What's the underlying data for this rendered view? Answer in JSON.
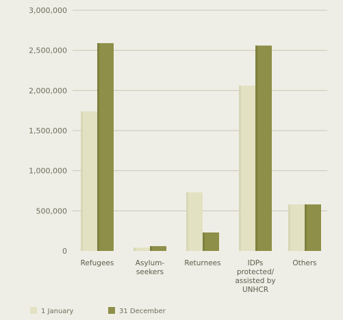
{
  "chart_data": {
    "type": "bar",
    "title": "",
    "xlabel": "",
    "ylabel": "",
    "ylim": [
      0,
      3000000
    ],
    "yticks": [
      0,
      500000,
      1000000,
      1500000,
      2000000,
      2500000,
      3000000
    ],
    "ytick_labels": [
      "0",
      "500,000",
      "1,000,000",
      "1,500,000",
      "2,000,000",
      "2,500,000",
      "3,000,000"
    ],
    "categories": [
      [
        "Refugees"
      ],
      [
        "Asylum-",
        "seekers"
      ],
      [
        "Returnees"
      ],
      [
        "IDPs",
        "protected/",
        "assisted by",
        "UNHCR"
      ],
      [
        "Others"
      ]
    ],
    "series": [
      {
        "name": "1 January",
        "color": "#e2e1c1",
        "values": [
          1740000,
          40000,
          730000,
          2060000,
          580000
        ]
      },
      {
        "name": "31 December",
        "color": "#8e8f48",
        "values": [
          2590000,
          60000,
          230000,
          2560000,
          580000
        ]
      }
    ],
    "grid": true,
    "legend_position": "bottom-left"
  }
}
